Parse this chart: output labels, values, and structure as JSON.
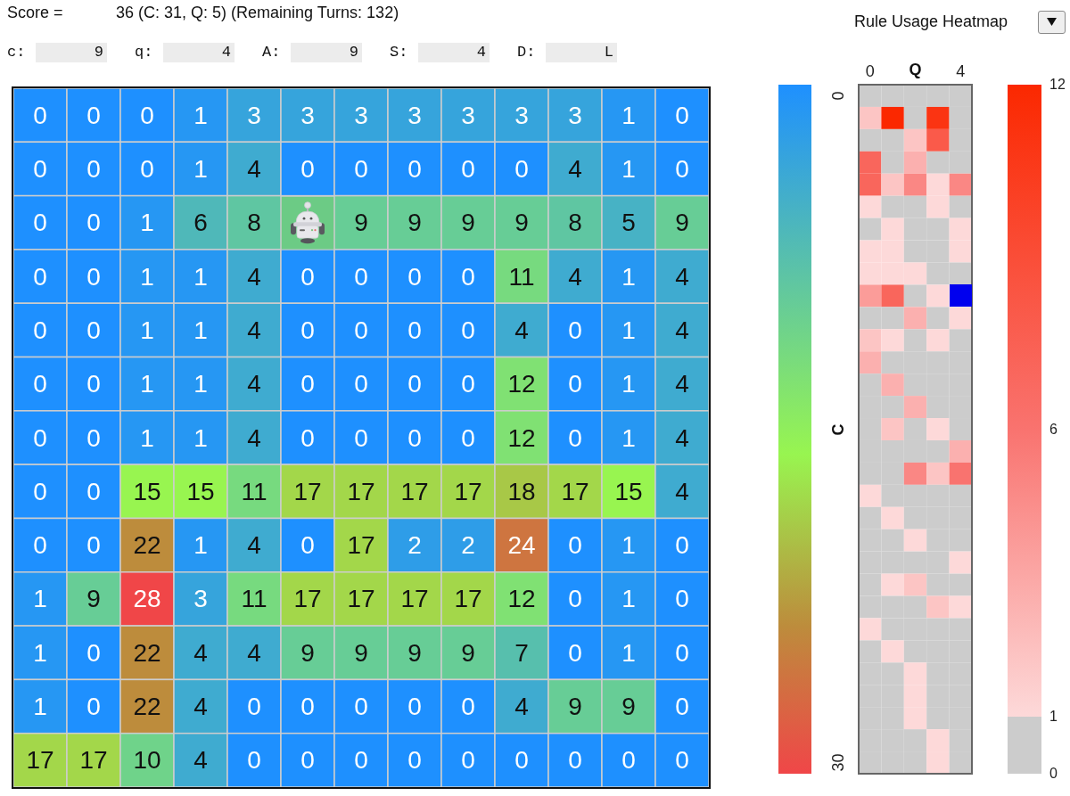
{
  "chart_data": [
    {
      "type": "other",
      "annotations": [
        "Score =",
        "36 (C: 31, Q: 5) (Remaining Turns: 132)",
        "c:",
        "9",
        "q:",
        "4",
        "A:",
        "9",
        "S:",
        "4",
        "D:",
        "L"
      ]
    },
    {
      "type": "heatmap",
      "categories": [
        null,
        null,
        null,
        null,
        null,
        null,
        null,
        null,
        null,
        null,
        null,
        null,
        null
      ],
      "y_categories": [
        null,
        null,
        null,
        null,
        null,
        null,
        null,
        null,
        null,
        null,
        null,
        null,
        null
      ],
      "cells": [
        [
          0,
          0,
          0,
          1,
          3,
          3,
          3,
          3,
          3,
          3,
          3,
          1,
          0
        ],
        [
          0,
          0,
          0,
          1,
          4,
          0,
          0,
          0,
          0,
          0,
          4,
          1,
          0
        ],
        [
          0,
          0,
          1,
          6,
          8,
          null,
          9,
          9,
          9,
          9,
          8,
          5,
          9
        ],
        [
          0,
          0,
          1,
          1,
          4,
          0,
          0,
          0,
          0,
          11,
          4,
          1,
          4
        ],
        [
          0,
          0,
          1,
          1,
          4,
          0,
          0,
          0,
          0,
          4,
          0,
          1,
          4
        ],
        [
          0,
          0,
          1,
          1,
          4,
          0,
          0,
          0,
          0,
          12,
          0,
          1,
          4
        ],
        [
          0,
          0,
          1,
          1,
          4,
          0,
          0,
          0,
          0,
          12,
          0,
          1,
          4
        ],
        [
          0,
          0,
          15,
          15,
          11,
          17,
          17,
          17,
          17,
          18,
          17,
          15,
          4
        ],
        [
          0,
          0,
          22,
          1,
          4,
          0,
          17,
          2,
          2,
          24,
          0,
          1,
          0
        ],
        [
          1,
          9,
          28,
          3,
          11,
          17,
          17,
          17,
          17,
          12,
          0,
          1,
          0
        ],
        [
          1,
          0,
          22,
          4,
          4,
          9,
          9,
          9,
          9,
          7,
          0,
          1,
          0
        ],
        [
          1,
          0,
          22,
          4,
          0,
          0,
          0,
          0,
          0,
          4,
          9,
          9,
          0
        ],
        [
          17,
          17,
          10,
          4,
          0,
          0,
          0,
          0,
          0,
          0,
          0,
          0,
          0
        ]
      ],
      "data_labels": true
    },
    {
      "type": "heatmap",
      "title": "Rule Usage Heatmap",
      "xlabel": "Q",
      "ylabel": "C",
      "categories": [
        "0",
        null,
        null,
        null,
        "4"
      ],
      "y_categories": [
        "0",
        null,
        null,
        null,
        null,
        null,
        null,
        null,
        null,
        null,
        null,
        null,
        null,
        null,
        null,
        null,
        null,
        null,
        null,
        null,
        null,
        null,
        null,
        null,
        null,
        null,
        null,
        null,
        null,
        null,
        "30"
      ],
      "cells": [
        [
          0,
          0,
          0,
          0,
          0
        ],
        [
          2,
          12,
          0,
          11,
          0
        ],
        [
          0,
          0,
          2,
          8,
          0
        ],
        [
          7,
          0,
          3,
          0,
          0
        ],
        [
          7,
          2,
          5,
          1,
          5
        ],
        [
          1,
          0,
          0,
          1,
          0
        ],
        [
          0,
          1,
          0,
          0,
          1
        ],
        [
          1,
          1,
          0,
          0,
          1
        ],
        [
          1,
          1,
          1,
          0,
          0
        ],
        [
          4,
          7,
          0,
          1,
          null
        ],
        [
          0,
          0,
          3,
          0,
          1
        ],
        [
          2,
          1,
          0,
          1,
          0
        ],
        [
          3,
          0,
          0,
          0,
          0
        ],
        [
          0,
          3,
          0,
          0,
          0
        ],
        [
          0,
          0,
          3,
          0,
          0
        ],
        [
          0,
          2,
          0,
          1,
          0
        ],
        [
          0,
          0,
          0,
          0,
          3
        ],
        [
          0,
          0,
          5,
          2,
          6
        ],
        [
          1,
          0,
          0,
          0,
          0
        ],
        [
          0,
          1,
          0,
          0,
          0
        ],
        [
          0,
          0,
          1,
          0,
          0
        ],
        [
          0,
          0,
          0,
          0,
          1
        ],
        [
          0,
          1,
          2,
          0,
          0
        ],
        [
          0,
          0,
          0,
          2,
          1
        ],
        [
          1,
          0,
          0,
          0,
          0
        ],
        [
          0,
          1,
          0,
          0,
          0
        ],
        [
          0,
          0,
          1,
          0,
          0
        ],
        [
          0,
          0,
          1,
          0,
          0
        ],
        [
          0,
          0,
          1,
          0,
          0
        ],
        [
          0,
          0,
          0,
          1,
          0
        ],
        [
          0,
          0,
          0,
          1,
          0
        ]
      ],
      "clim": [
        0,
        12
      ],
      "cticks": [
        0,
        1,
        6,
        12
      ]
    }
  ]
}
